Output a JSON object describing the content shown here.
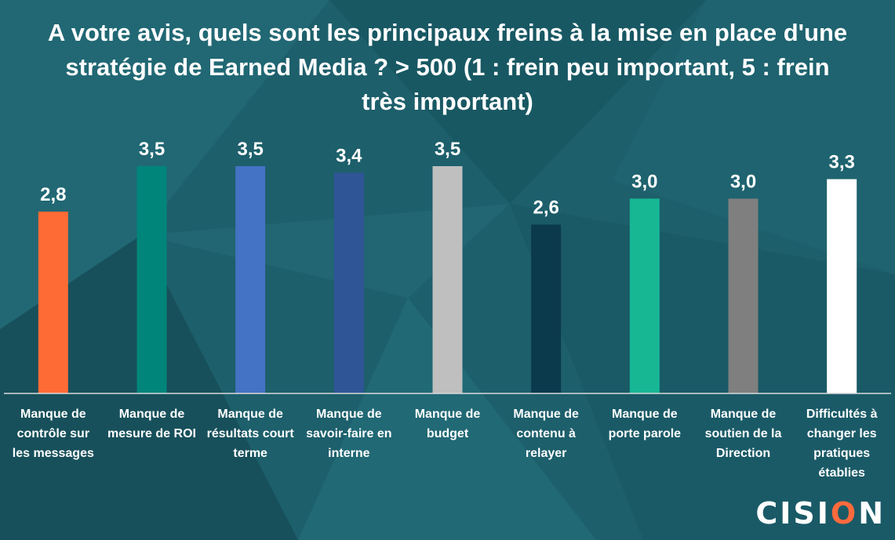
{
  "chart_data": {
    "type": "bar",
    "title": "A votre avis, quels sont les principaux freins à la mise en place d'une stratégie de Earned Media ? > 500 (1 : frein peu important, 5 : frein très important)",
    "categories": [
      [
        "Manque de",
        "contrôle sur",
        "les messages"
      ],
      [
        "Manque de",
        "mesure de ROI"
      ],
      [
        "Manque de",
        "résultats court",
        "terme"
      ],
      [
        "Manque de",
        "savoir-faire en",
        "interne"
      ],
      [
        "Manque de",
        "budget"
      ],
      [
        "Manque de",
        "contenu à",
        "relayer"
      ],
      [
        "Manque de",
        "porte parole"
      ],
      [
        "Manque de",
        "soutien de la",
        "Direction"
      ],
      [
        "Difficultés à",
        "changer les",
        "pratiques",
        "établies"
      ]
    ],
    "values": [
      2.8,
      3.5,
      3.5,
      3.4,
      3.5,
      2.6,
      3.0,
      3.0,
      3.3
    ],
    "value_labels": [
      "2,8",
      "3,5",
      "3,5",
      "3,4",
      "3,5",
      "2,6",
      "3,0",
      "3,0",
      "3,3"
    ],
    "colors": [
      "#ff6b35",
      "#00857a",
      "#4472c4",
      "#2f5597",
      "#bfbfbf",
      "#0b3a4c",
      "#17b794",
      "#7f7f7f",
      "#ffffff"
    ],
    "ylim": [
      0,
      3.5
    ],
    "grid": false,
    "xlabel": "",
    "ylabel": ""
  },
  "logo": {
    "text_before": "CISI",
    "text_o": "O",
    "text_after": "N"
  }
}
